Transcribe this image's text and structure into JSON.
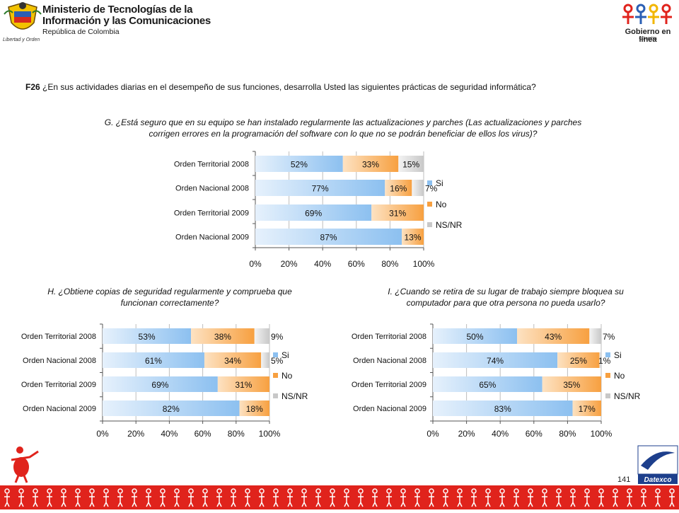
{
  "header": {
    "ministry_line1": "Ministerio de Tecnologías de la",
    "ministry_line2": "Información y las Comunicaciones",
    "ministry_line3": "República de Colombia",
    "motto": "Libertad y Orden",
    "gel_title_1": "Gobierno en línea",
    "gel_sub": "Colombia"
  },
  "question": {
    "code": "F26",
    "text": " ¿En sus actividades diarias en el desempeño de sus funciones, desarrolla Usted las siguientes prácticas de seguridad informática?"
  },
  "subquestions": {
    "g_line1": "G. ¿Está seguro que en su equipo se han instalado regularmente las actualizaciones y parches (Las actualizaciones y parches",
    "g_line2": "corrigen errores en la programación del software con lo que no se podrán beneficiar de ellos los virus)?",
    "h_line1": "H. ¿Obtiene copias de seguridad regularmente y comprueba que",
    "h_line2": "funcionan correctamente?",
    "i_line1": "I. ¿Cuando se retira de su lugar de trabajo siempre bloquea su",
    "i_line2": "computador para que otra persona no pueda usarlo?"
  },
  "footer": {
    "page_number": "141",
    "datexco": "Datexco"
  },
  "colors": {
    "si": "#8cc0f0",
    "no": "#f7a040",
    "nsnr": "#c8c8c8",
    "band": "#e0231c"
  },
  "chart_data": [
    {
      "type": "bar",
      "orientation": "horizontal",
      "stacked": true,
      "categories": [
        "Orden Territorial 2008",
        "Orden Nacional 2008",
        "Orden Territorial 2009",
        "Orden Nacional 2009"
      ],
      "series": [
        {
          "name": "Si",
          "values": [
            52,
            77,
            69,
            87
          ]
        },
        {
          "name": "No",
          "values": [
            33,
            16,
            31,
            13
          ]
        },
        {
          "name": "NS/NR",
          "values": [
            15,
            7,
            0,
            0
          ]
        }
      ],
      "labels": [
        [
          "52%",
          "33%",
          "15%"
        ],
        [
          "77%",
          "16%",
          "7%"
        ],
        [
          "69%",
          "31%",
          ""
        ],
        [
          "87%",
          "13%",
          ""
        ]
      ],
      "xticks": [
        "0%",
        "20%",
        "40%",
        "60%",
        "80%",
        "100%"
      ],
      "xlim": [
        0,
        100
      ],
      "legend": "right",
      "grid": true
    },
    {
      "type": "bar",
      "orientation": "horizontal",
      "stacked": true,
      "categories": [
        "Orden Territorial 2008",
        "Orden Nacional 2008",
        "Orden Territorial 2009",
        "Orden Nacional 2009"
      ],
      "series": [
        {
          "name": "Si",
          "values": [
            53,
            61,
            69,
            82
          ]
        },
        {
          "name": "No",
          "values": [
            38,
            34,
            31,
            18
          ]
        },
        {
          "name": "NS/NR",
          "values": [
            9,
            5,
            0,
            0
          ]
        }
      ],
      "labels": [
        [
          "53%",
          "38%",
          "9%"
        ],
        [
          "61%",
          "34%",
          "5%"
        ],
        [
          "69%",
          "31%",
          ""
        ],
        [
          "82%",
          "18%",
          ""
        ]
      ],
      "xticks": [
        "0%",
        "20%",
        "40%",
        "60%",
        "80%",
        "100%"
      ],
      "xlim": [
        0,
        100
      ],
      "legend": "right",
      "grid": true
    },
    {
      "type": "bar",
      "orientation": "horizontal",
      "stacked": true,
      "categories": [
        "Orden Territorial 2008",
        "Orden Nacional 2008",
        "Orden Territorial 2009",
        "Orden Nacional 2009"
      ],
      "series": [
        {
          "name": "Si",
          "values": [
            50,
            74,
            65,
            83
          ]
        },
        {
          "name": "No",
          "values": [
            43,
            25,
            35,
            17
          ]
        },
        {
          "name": "NS/NR",
          "values": [
            7,
            1,
            0,
            0
          ]
        }
      ],
      "labels": [
        [
          "50%",
          "43%",
          "7%"
        ],
        [
          "74%",
          "25%",
          "1%"
        ],
        [
          "65%",
          "35%",
          ""
        ],
        [
          "83%",
          "17%",
          ""
        ]
      ],
      "xticks": [
        "0%",
        "20%",
        "40%",
        "60%",
        "80%",
        "100%"
      ],
      "xlim": [
        0,
        100
      ],
      "legend": "right",
      "grid": true
    }
  ]
}
